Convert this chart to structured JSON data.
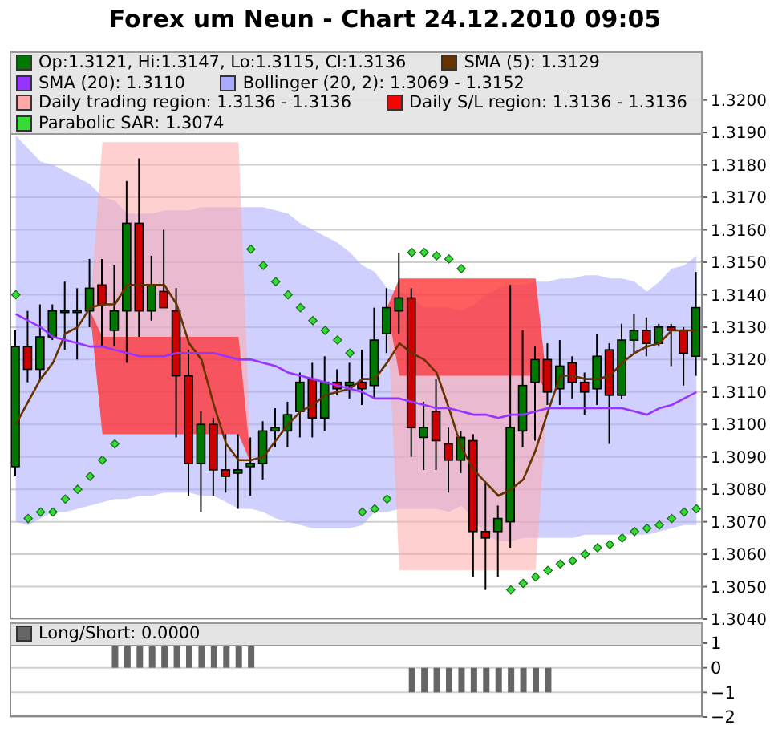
{
  "chart_data": [
    {
      "type": "candlestick",
      "title": "Forex um Neun - Chart 24.12.2010 09:05",
      "categories": [
        null,
        null,
        null,
        null,
        null,
        null,
        null,
        null,
        null,
        null,
        null,
        null,
        null,
        null,
        null,
        null,
        null,
        null,
        null,
        null,
        null,
        null,
        null,
        null,
        null,
        null,
        null,
        null,
        null,
        null,
        null,
        null,
        null,
        null,
        null,
        null,
        null,
        null,
        null,
        null,
        null,
        null,
        null,
        null,
        null,
        null,
        null,
        null,
        null,
        null,
        null,
        null,
        null,
        null,
        null,
        null
      ],
      "ylim": [
        1.304,
        1.3215
      ],
      "yticks": [
        {
          "value": 1.304,
          "label": "1.3040"
        },
        {
          "value": 1.305,
          "label": "1.3050"
        },
        {
          "value": 1.306,
          "label": "1.3060"
        },
        {
          "value": 1.307,
          "label": "1.3070"
        },
        {
          "value": 1.308,
          "label": "1.3080"
        },
        {
          "value": 1.309,
          "label": "1.3090"
        },
        {
          "value": 1.31,
          "label": "1.3100"
        },
        {
          "value": 1.311,
          "label": "1.3110"
        },
        {
          "value": 1.312,
          "label": "1.3120"
        },
        {
          "value": 1.313,
          "label": "1.3130"
        },
        {
          "value": 1.314,
          "label": "1.3140"
        },
        {
          "value": 1.315,
          "label": "1.3150"
        },
        {
          "value": 1.316,
          "label": "1.3160"
        },
        {
          "value": 1.317,
          "label": "1.3170"
        },
        {
          "value": 1.318,
          "label": "1.3180"
        },
        {
          "value": 1.319,
          "label": "1.3190"
        },
        {
          "value": 1.32,
          "label": "1.3200"
        }
      ],
      "grid": "y",
      "legend": "top",
      "tick_labels": "y",
      "series": [
        {
          "type": "candlestick",
          "name": "Op:1.3121, Hi:1.3147, Lo:1.3115, Cl:1.3136",
          "color": "#007700",
          "colors": [
            "#007700",
            "#cc0000",
            "#007700",
            "#007700",
            "#007700",
            "#007700",
            "#007700",
            "#cc0000",
            "#007700",
            "#007700",
            "#cc0000",
            "#007700",
            "#cc0000",
            "#cc0000",
            "#cc0000",
            "#007700",
            "#cc0000",
            "#cc0000",
            "#007700",
            "#007700",
            "#007700",
            "#007700",
            "#007700",
            "#007700",
            "#cc0000",
            "#007700",
            "#cc0000",
            "#007700",
            "#cc0000",
            "#007700",
            "#007700",
            "#007700",
            "#cc0000",
            "#007700",
            "#cc0000",
            "#cc0000",
            "#007700",
            "#cc0000",
            "#cc0000",
            "#007700",
            "#007700",
            "#007700",
            "#007700",
            "#cc0000",
            "#007700",
            "#cc0000",
            "#cc0000",
            "#007700",
            "#cc0000",
            "#007700",
            "#007700",
            "#cc0000",
            "#007700",
            "#cc0000",
            "#cc0000",
            "#007700"
          ],
          "ohlc": [
            [
              1.3087,
              1.3129,
              1.3084,
              1.3124
            ],
            [
              1.3124,
              1.3135,
              1.3113,
              1.3117
            ],
            [
              1.3117,
              1.3137,
              1.3114,
              1.3127
            ],
            [
              1.3127,
              1.3137,
              1.3126,
              1.3135
            ],
            [
              1.3135,
              1.3144,
              1.3123,
              1.3135
            ],
            [
              1.3135,
              1.3142,
              1.312,
              1.3135
            ],
            [
              1.3135,
              1.3151,
              1.313,
              1.3142
            ],
            [
              1.3143,
              1.3151,
              1.3124,
              1.3137
            ],
            [
              1.3129,
              1.3149,
              1.3124,
              1.3135
            ],
            [
              1.3135,
              1.3175,
              1.3119,
              1.3162
            ],
            [
              1.3162,
              1.3182,
              1.3127,
              1.3135
            ],
            [
              1.3135,
              1.3152,
              1.3132,
              1.3143
            ],
            [
              1.3141,
              1.316,
              1.3136,
              1.3136
            ],
            [
              1.3135,
              1.3142,
              1.3096,
              1.3115
            ],
            [
              1.3115,
              1.3123,
              1.3078,
              1.3088
            ],
            [
              1.3088,
              1.3104,
              1.3073,
              1.31
            ],
            [
              1.31,
              1.3102,
              1.3078,
              1.3086
            ],
            [
              1.3086,
              1.3097,
              1.3079,
              1.3084
            ],
            [
              1.3085,
              1.3097,
              1.3074,
              1.3086
            ],
            [
              1.3087,
              1.3096,
              1.3078,
              1.3088
            ],
            [
              1.3088,
              1.3101,
              1.3083,
              1.3098
            ],
            [
              1.3098,
              1.3105,
              1.3093,
              1.3099
            ],
            [
              1.3098,
              1.3107,
              1.3093,
              1.3103
            ],
            [
              1.3104,
              1.3116,
              1.3096,
              1.3113
            ],
            [
              1.3114,
              1.3119,
              1.3096,
              1.3102
            ],
            [
              1.3102,
              1.3121,
              1.3098,
              1.3113
            ],
            [
              1.3113,
              1.3117,
              1.3109,
              1.3111
            ],
            [
              1.3112,
              1.3119,
              1.3108,
              1.3113
            ],
            [
              1.3113,
              1.3123,
              1.3106,
              1.3111
            ],
            [
              1.3112,
              1.3136,
              1.3108,
              1.3126
            ],
            [
              1.3128,
              1.3142,
              1.3122,
              1.3136
            ],
            [
              1.3135,
              1.3153,
              1.3128,
              1.3139
            ],
            [
              1.3139,
              1.3142,
              1.309,
              1.3099
            ],
            [
              1.3096,
              1.3107,
              1.3086,
              1.3099
            ],
            [
              1.3104,
              1.3114,
              1.3086,
              1.3095
            ],
            [
              1.3094,
              1.3099,
              1.3079,
              1.3089
            ],
            [
              1.3089,
              1.3098,
              1.3085,
              1.3096
            ],
            [
              1.3095,
              1.3097,
              1.3053,
              1.3067
            ],
            [
              1.3067,
              1.3082,
              1.3049,
              1.3065
            ],
            [
              1.3067,
              1.3075,
              1.3053,
              1.3071
            ],
            [
              1.307,
              1.3143,
              1.3062,
              1.3099
            ],
            [
              1.3098,
              1.3129,
              1.3093,
              1.3112
            ],
            [
              1.3113,
              1.3124,
              1.3095,
              1.312
            ],
            [
              1.312,
              1.3125,
              1.3106,
              1.311
            ],
            [
              1.3111,
              1.3126,
              1.3106,
              1.3118
            ],
            [
              1.3119,
              1.3121,
              1.3108,
              1.3113
            ],
            [
              1.3113,
              1.3116,
              1.3103,
              1.311
            ],
            [
              1.3111,
              1.3128,
              1.3106,
              1.3121
            ],
            [
              1.3123,
              1.3125,
              1.3094,
              1.3109
            ],
            [
              1.3109,
              1.3131,
              1.3108,
              1.3126
            ],
            [
              1.3126,
              1.3134,
              1.3122,
              1.3129
            ],
            [
              1.3129,
              1.3133,
              1.3121,
              1.3125
            ],
            [
              1.3125,
              1.3131,
              1.3124,
              1.313
            ],
            [
              1.313,
              1.3131,
              1.3118,
              1.3129
            ],
            [
              1.3129,
              1.313,
              1.3112,
              1.3122
            ],
            [
              1.3121,
              1.3147,
              1.3115,
              1.3136
            ]
          ]
        },
        {
          "type": "line",
          "name": "SMA (5): 1.3129",
          "color": "#663300",
          "values": [
            1.31,
            1.3107,
            1.3114,
            1.3119,
            1.3128,
            1.313,
            1.3136,
            1.3137,
            1.3137,
            1.3143,
            1.3143,
            1.3143,
            1.3143,
            1.3137,
            1.3125,
            1.312,
            1.3106,
            1.3094,
            1.3089,
            1.3089,
            1.309,
            1.3095,
            1.31,
            1.3104,
            1.3106,
            1.3109,
            1.311,
            1.3111,
            1.3114,
            1.3114,
            1.3119,
            1.3125,
            1.3122,
            1.312,
            1.3116,
            1.3105,
            1.3093,
            1.3086,
            1.3082,
            1.3078,
            1.308,
            1.3083,
            1.3092,
            1.3104,
            1.3115,
            1.3115,
            1.3114,
            1.3114,
            1.3115,
            1.3119,
            1.3122,
            1.3124,
            1.3125,
            1.3129,
            1.3129,
            1.3129
          ]
        },
        {
          "type": "line",
          "name": "SMA (20): 1.3110",
          "color": "#9933ff",
          "values": [
            1.3134,
            1.3132,
            1.313,
            1.3127,
            1.3126,
            1.3125,
            1.3124,
            1.3124,
            1.3123,
            1.3122,
            1.3121,
            1.3121,
            1.3121,
            1.3122,
            1.3122,
            1.3122,
            1.3122,
            1.3121,
            1.312,
            1.312,
            1.3119,
            1.3118,
            1.3116,
            1.3115,
            1.3114,
            1.3113,
            1.3112,
            1.3111,
            1.311,
            1.3108,
            1.3108,
            1.3108,
            1.3107,
            1.3106,
            1.3105,
            1.3105,
            1.3104,
            1.3103,
            1.3103,
            1.3102,
            1.3103,
            1.3103,
            1.3104,
            1.3105,
            1.3105,
            1.3105,
            1.3105,
            1.3105,
            1.3105,
            1.3105,
            1.3104,
            1.3103,
            1.3105,
            1.3106,
            1.3108,
            1.311
          ]
        },
        {
          "type": "line",
          "name": "Bollinger (20, 2): 1.3069 - 1.3152",
          "color": "#aaaaff",
          "values": [
            null,
            null,
            null,
            null,
            null,
            null,
            null,
            null,
            null,
            null,
            null,
            null,
            null,
            null,
            null,
            null,
            null,
            null,
            null,
            null,
            null,
            null,
            null,
            null,
            null,
            null,
            null,
            null,
            null,
            null,
            null,
            null,
            null,
            null,
            null,
            null,
            null,
            null,
            null,
            null,
            null,
            null,
            null,
            null,
            null,
            null,
            null,
            null,
            null,
            null,
            null,
            null,
            null,
            null,
            null,
            null
          ],
          "lower": [
            1.307,
            1.3069,
            1.3071,
            1.3073,
            1.3073,
            1.3074,
            1.3075,
            1.3076,
            1.3077,
            1.3077,
            1.3078,
            1.3078,
            1.3079,
            1.3079,
            1.3079,
            1.3078,
            1.3078,
            1.3076,
            1.3074,
            1.3074,
            1.3073,
            1.3071,
            1.307,
            1.3069,
            1.3068,
            1.3068,
            1.3068,
            1.3068,
            1.3069,
            1.3073,
            1.3073,
            1.3074,
            1.3074,
            1.3074,
            1.3074,
            1.3073,
            1.3075,
            1.3071,
            1.3066,
            1.3064,
            1.3064,
            1.3065,
            1.3065,
            1.3065,
            1.3065,
            1.3065,
            1.3066,
            1.3066,
            1.3066,
            1.3066,
            1.3066,
            1.3066,
            1.3067,
            1.3068,
            1.3069,
            1.3069
          ],
          "upper": [
            1.3189,
            1.3185,
            1.3181,
            1.318,
            1.3178,
            1.3176,
            1.3174,
            1.317,
            1.3169,
            1.3165,
            1.3165,
            1.3165,
            1.3166,
            1.3166,
            1.3166,
            1.3167,
            1.3167,
            1.3167,
            1.3167,
            1.3167,
            1.3167,
            1.3166,
            1.3165,
            1.3162,
            1.316,
            1.3158,
            1.3156,
            1.3153,
            1.3149,
            1.3147,
            1.3142,
            1.3141,
            1.3139,
            1.3136,
            1.3136,
            1.3136,
            1.3135,
            1.3137,
            1.314,
            1.3142,
            1.3143,
            1.3143,
            1.3144,
            1.3144,
            1.3145,
            1.3145,
            1.3146,
            1.3146,
            1.3145,
            1.3145,
            1.3144,
            1.3141,
            1.3144,
            1.3148,
            1.3149,
            1.3152
          ]
        },
        {
          "type": "line",
          "name": "Daily trading region: 1.3136 - 1.3136",
          "color": "#ffaaaa",
          "values": [
            null,
            null,
            null,
            null,
            null,
            null,
            null,
            null,
            null,
            null,
            null,
            null,
            null,
            null,
            null,
            null,
            null,
            null,
            null,
            null,
            null,
            null,
            null,
            null,
            null,
            null,
            null,
            null,
            null,
            null,
            null,
            null,
            null,
            null,
            null,
            null,
            null,
            null,
            null,
            null,
            null,
            null,
            null,
            null,
            null,
            null,
            null,
            null,
            null,
            null,
            null,
            null,
            null,
            null,
            null,
            null
          ],
          "lower": [
            null,
            null,
            null,
            null,
            null,
            null,
            1.3135,
            1.3097,
            1.3097,
            1.3097,
            1.3097,
            1.3097,
            1.3097,
            1.3097,
            1.3097,
            1.3097,
            1.3097,
            1.3097,
            1.3097,
            1.3088,
            null,
            null,
            null,
            null,
            null,
            null,
            null,
            null,
            null,
            null,
            1.3136,
            1.3055,
            1.3055,
            1.3055,
            1.3055,
            1.3055,
            1.3055,
            1.3055,
            1.3055,
            1.3055,
            1.3055,
            1.3055,
            1.3055,
            1.311,
            null,
            null,
            null,
            null,
            null,
            null,
            null,
            null,
            null,
            null,
            null,
            null
          ],
          "upper": [
            null,
            null,
            null,
            null,
            null,
            null,
            1.3135,
            1.3187,
            1.3187,
            1.3187,
            1.3187,
            1.3187,
            1.3187,
            1.3187,
            1.3187,
            1.3187,
            1.3187,
            1.3187,
            1.3187,
            1.3088,
            null,
            null,
            null,
            null,
            null,
            null,
            null,
            null,
            null,
            null,
            1.3136,
            1.3145,
            1.3145,
            1.3145,
            1.3145,
            1.3145,
            1.3145,
            1.3145,
            1.3145,
            1.3145,
            1.3145,
            1.3145,
            1.3145,
            1.311,
            null,
            null,
            null,
            null,
            null,
            null,
            null,
            null,
            null,
            null,
            null,
            null
          ]
        },
        {
          "type": "line",
          "name": "Daily S/L region: 1.3136 - 1.3136",
          "color": "#ff0000",
          "values": [
            null,
            null,
            null,
            null,
            null,
            null,
            null,
            null,
            null,
            null,
            null,
            null,
            null,
            null,
            null,
            null,
            null,
            null,
            null,
            null,
            null,
            null,
            null,
            null,
            null,
            null,
            null,
            null,
            null,
            null,
            null,
            null,
            null,
            null,
            null,
            null,
            null,
            null,
            null,
            null,
            null,
            null,
            null,
            null,
            null,
            null,
            null,
            null,
            null,
            null,
            null,
            null,
            null,
            null,
            null,
            null
          ],
          "lower": [
            null,
            null,
            null,
            null,
            null,
            null,
            1.3135,
            1.3097,
            1.3097,
            1.3097,
            1.3097,
            1.3097,
            1.3097,
            1.3097,
            1.3097,
            1.3097,
            1.3097,
            1.3097,
            1.3097,
            1.3088,
            null,
            null,
            null,
            null,
            null,
            null,
            null,
            null,
            null,
            null,
            1.3136,
            1.3115,
            1.3115,
            1.3115,
            1.3115,
            1.3115,
            1.3115,
            1.3115,
            1.3115,
            1.3115,
            1.3115,
            1.3115,
            1.3115,
            1.311,
            null,
            null,
            null,
            null,
            null,
            null,
            null,
            null,
            null,
            null,
            null,
            null
          ],
          "upper": [
            null,
            null,
            null,
            null,
            null,
            null,
            1.3135,
            1.3127,
            1.3127,
            1.3127,
            1.3127,
            1.3127,
            1.3127,
            1.3127,
            1.3127,
            1.3127,
            1.3127,
            1.3127,
            1.3127,
            1.3088,
            null,
            null,
            null,
            null,
            null,
            null,
            null,
            null,
            null,
            null,
            1.3136,
            1.3145,
            1.3145,
            1.3145,
            1.3145,
            1.3145,
            1.3145,
            1.3145,
            1.3145,
            1.3145,
            1.3145,
            1.3145,
            1.3145,
            1.311,
            null,
            null,
            null,
            null,
            null,
            null,
            null,
            null,
            null,
            null,
            null,
            null
          ]
        },
        {
          "type": "scatter",
          "name": "Parabolic SAR: 1.3074",
          "color": "#33dd33",
          "marker": "diamond",
          "values": [
            1.314,
            1.3071,
            1.3073,
            1.3073,
            1.3077,
            1.308,
            1.3084,
            1.3089,
            1.3094,
            null,
            null,
            null,
            null,
            null,
            null,
            null,
            null,
            null,
            null,
            1.3154,
            1.3149,
            1.3144,
            1.314,
            1.3136,
            1.3132,
            1.3129,
            1.3126,
            1.3122,
            1.3073,
            1.3074,
            1.3077,
            null,
            1.3153,
            1.3153,
            1.3152,
            1.3151,
            1.3148,
            null,
            null,
            null,
            1.3049,
            1.3051,
            1.3053,
            1.3055,
            1.3057,
            1.3058,
            1.306,
            1.3062,
            1.3063,
            1.3065,
            1.3067,
            1.3068,
            1.3069,
            1.3071,
            1.3073,
            1.3074
          ]
        }
      ]
    },
    {
      "type": "bar",
      "categories": [
        null,
        null,
        null,
        null,
        null,
        null,
        null,
        null,
        null,
        null,
        null,
        null,
        null,
        null,
        null,
        null,
        null,
        null,
        null,
        null,
        null,
        null,
        null,
        null,
        null,
        null,
        null,
        null,
        null,
        null,
        null,
        null,
        null,
        null,
        null,
        null,
        null,
        null,
        null,
        null,
        null,
        null,
        null,
        null,
        null,
        null,
        null,
        null,
        null,
        null,
        null,
        null,
        null,
        null,
        null,
        null
      ],
      "ylim": [
        -2,
        1
      ],
      "yticks": [
        {
          "value": 1,
          "label": "1"
        },
        {
          "value": 0,
          "label": "0"
        },
        {
          "value": -1,
          "label": "−1"
        },
        {
          "value": -2,
          "label": "−2"
        }
      ],
      "grid": "y",
      "legend": "top",
      "tick_labels": "y",
      "series": [
        {
          "name": "Long/Short: 0.0000",
          "color": "#666666",
          "values": [
            0,
            0,
            0,
            0,
            0,
            0,
            0,
            0,
            1,
            1,
            1,
            1,
            1,
            1,
            1,
            1,
            1,
            1,
            1,
            1,
            0,
            0,
            0,
            0,
            0,
            0,
            0,
            0,
            0,
            0,
            0,
            0,
            -1,
            -1,
            -1,
            -1,
            -1,
            -1,
            -1,
            -1,
            -1,
            -1,
            -1,
            -1,
            0,
            0,
            0,
            0,
            0,
            0,
            0,
            0,
            0,
            0,
            0,
            0
          ]
        }
      ]
    }
  ]
}
